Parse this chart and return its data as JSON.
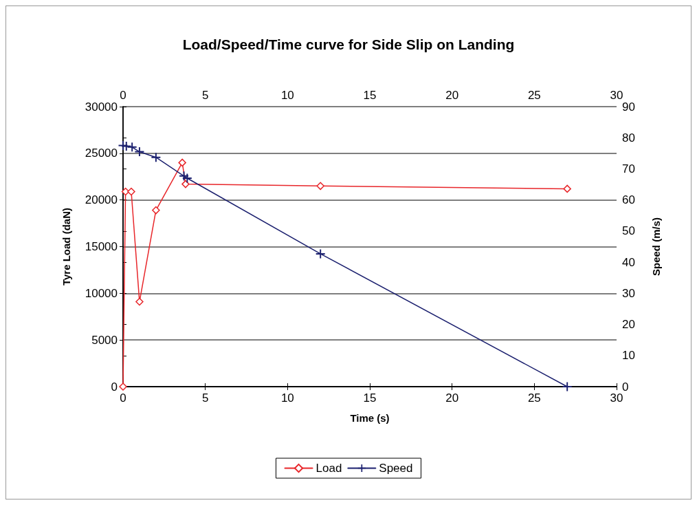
{
  "chart_data": {
    "type": "line",
    "title": "Load/Speed/Time curve for Side Slip on Landing",
    "xlabel": "Time (s)",
    "ylabel": "Tyre Load (daN)",
    "y2label": "Speed (m/s)",
    "xlim": [
      0,
      30
    ],
    "xticks": [
      0,
      5,
      10,
      15,
      20,
      25,
      30
    ],
    "x2lim": [
      0,
      30
    ],
    "x2ticks": [
      0,
      5,
      10,
      15,
      20,
      25,
      30
    ],
    "ylim": [
      0,
      30000
    ],
    "yticks": [
      0,
      5000,
      10000,
      15000,
      20000,
      25000,
      30000
    ],
    "y2lim": [
      0,
      90
    ],
    "y2ticks": [
      0,
      10,
      20,
      30,
      40,
      50,
      60,
      70,
      80,
      90
    ],
    "grid": "y",
    "legend": "bottom",
    "line_style": "solid",
    "series": [
      {
        "name": "Load",
        "color": "#e8262a",
        "marker": "diamond",
        "x": [
          0,
          0.15,
          0.5,
          1.0,
          2.0,
          3.6,
          3.8,
          12,
          27
        ],
        "values": [
          0,
          20900,
          20900,
          9100,
          18900,
          24000,
          21700,
          21500,
          21200
        ]
      },
      {
        "name": "Speed",
        "color": "#1a1f6e",
        "marker": "cross",
        "axis": "y2",
        "x": [
          0,
          0.2,
          0.55,
          1.0,
          2.0,
          3.7,
          3.9,
          12,
          27
        ],
        "values": [
          77.5,
          77.3,
          77,
          75.5,
          73.7,
          67.7,
          67,
          42.7,
          0
        ]
      }
    ]
  }
}
